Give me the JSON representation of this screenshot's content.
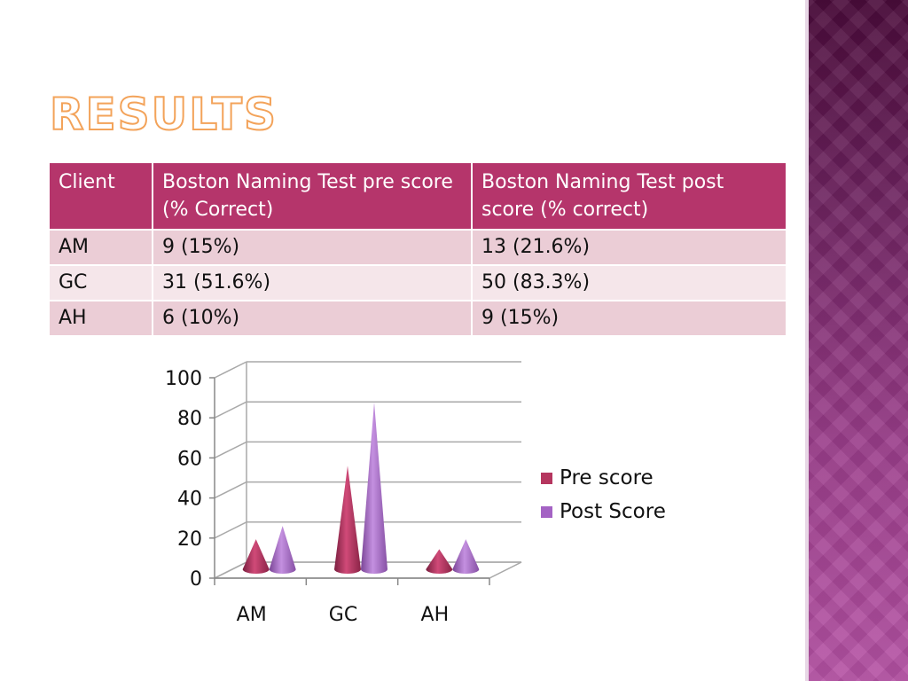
{
  "slide": {
    "title": "RESULTS"
  },
  "table": {
    "headers": [
      "Client",
      "Boston Naming Test pre score (% Correct)",
      "Boston Naming Test post score (% correct)"
    ],
    "rows": [
      [
        "AM",
        "9 (15%)",
        "13 (21.6%)"
      ],
      [
        "GC",
        "31 (51.6%)",
        "50 (83.3%)"
      ],
      [
        "AH",
        "6 (10%)",
        "9 (15%)"
      ]
    ]
  },
  "colors": {
    "pre": "#b5365f",
    "post": "#a463c4",
    "header": "#b5356b"
  },
  "chart_data": {
    "type": "bar",
    "style": "3d-cone",
    "categories": [
      "AM",
      "GC",
      "AH"
    ],
    "series": [
      {
        "name": "Pre score",
        "values": [
          15,
          51.6,
          10
        ]
      },
      {
        "name": "Post Score",
        "values": [
          21.6,
          83.3,
          15
        ]
      }
    ],
    "yticks": [
      "0",
      "20",
      "40",
      "60",
      "80",
      "100"
    ],
    "ylim": [
      0,
      100
    ],
    "grid": true,
    "legend": "right"
  }
}
